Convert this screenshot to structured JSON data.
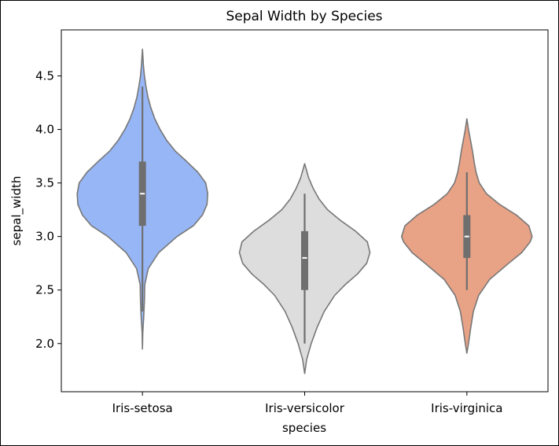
{
  "chart_data": {
    "type": "violin",
    "title": "Sepal Width by Species",
    "xlabel": "species",
    "ylabel": "sepal_width",
    "categories": [
      "Iris-setosa",
      "Iris-versicolor",
      "Iris-virginica"
    ],
    "ylim": [
      1.55,
      4.93
    ],
    "yticks": [
      2.0,
      2.5,
      3.0,
      3.5,
      4.0,
      4.5
    ],
    "ytick_labels": [
      "2.0",
      "2.5",
      "3.0",
      "3.5",
      "4.0",
      "4.5"
    ],
    "grid": false,
    "violins": [
      {
        "category": "Iris-setosa",
        "color": "#97b6f5",
        "whisker": [
          2.3,
          4.4
        ],
        "q1": 3.1,
        "median": 3.4,
        "q3": 3.7,
        "density": [
          [
            1.95,
            0.0
          ],
          [
            2.1,
            0.005
          ],
          [
            2.25,
            0.02
          ],
          [
            2.4,
            0.03
          ],
          [
            2.55,
            0.035
          ],
          [
            2.7,
            0.09
          ],
          [
            2.85,
            0.25
          ],
          [
            3.0,
            0.53
          ],
          [
            3.1,
            0.78
          ],
          [
            3.2,
            0.92
          ],
          [
            3.3,
            0.99
          ],
          [
            3.4,
            1.0
          ],
          [
            3.5,
            0.97
          ],
          [
            3.6,
            0.85
          ],
          [
            3.7,
            0.68
          ],
          [
            3.8,
            0.5
          ],
          [
            3.9,
            0.37
          ],
          [
            4.0,
            0.27
          ],
          [
            4.1,
            0.19
          ],
          [
            4.2,
            0.13
          ],
          [
            4.3,
            0.085
          ],
          [
            4.4,
            0.055
          ],
          [
            4.5,
            0.03
          ],
          [
            4.6,
            0.015
          ],
          [
            4.75,
            0.0
          ]
        ]
      },
      {
        "category": "Iris-versicolor",
        "color": "#dddddd",
        "whisker": [
          2.0,
          3.4
        ],
        "q1": 2.5,
        "median": 2.8,
        "q3": 3.05,
        "density": [
          [
            1.72,
            0.0
          ],
          [
            1.85,
            0.03
          ],
          [
            2.0,
            0.1
          ],
          [
            2.15,
            0.19
          ],
          [
            2.3,
            0.3
          ],
          [
            2.45,
            0.46
          ],
          [
            2.55,
            0.62
          ],
          [
            2.65,
            0.81
          ],
          [
            2.75,
            0.95
          ],
          [
            2.85,
            1.0
          ],
          [
            2.95,
            0.96
          ],
          [
            3.05,
            0.78
          ],
          [
            3.15,
            0.55
          ],
          [
            3.25,
            0.35
          ],
          [
            3.35,
            0.22
          ],
          [
            3.45,
            0.13
          ],
          [
            3.55,
            0.06
          ],
          [
            3.68,
            0.0
          ]
        ]
      },
      {
        "category": "Iris-virginica",
        "color": "#e8a286",
        "whisker": [
          2.5,
          3.6
        ],
        "q1": 2.8,
        "median": 3.0,
        "q3": 3.2,
        "density": [
          [
            1.91,
            0.0
          ],
          [
            2.0,
            0.025
          ],
          [
            2.15,
            0.06
          ],
          [
            2.3,
            0.1
          ],
          [
            2.45,
            0.18
          ],
          [
            2.6,
            0.35
          ],
          [
            2.75,
            0.64
          ],
          [
            2.85,
            0.84
          ],
          [
            2.95,
            0.97
          ],
          [
            3.0,
            1.0
          ],
          [
            3.1,
            0.95
          ],
          [
            3.2,
            0.76
          ],
          [
            3.3,
            0.5
          ],
          [
            3.4,
            0.3
          ],
          [
            3.5,
            0.19
          ],
          [
            3.6,
            0.14
          ],
          [
            3.7,
            0.11
          ],
          [
            3.8,
            0.085
          ],
          [
            3.9,
            0.055
          ],
          [
            4.0,
            0.025
          ],
          [
            4.1,
            0.0
          ]
        ]
      }
    ]
  }
}
